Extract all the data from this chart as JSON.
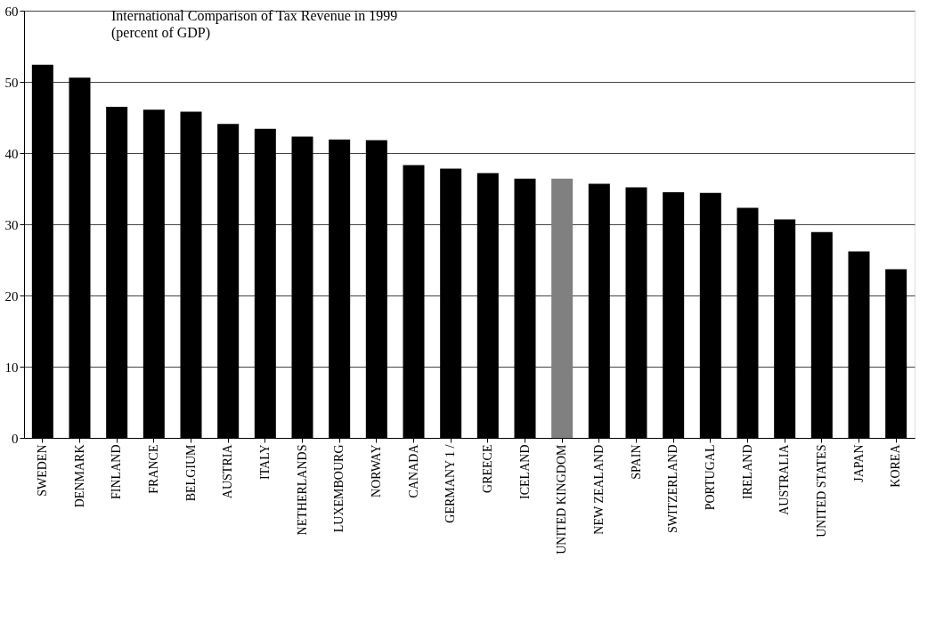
{
  "chart_data": {
    "type": "bar",
    "title": "International Comparison of Tax Revenue in 1999",
    "subtitle": "(percent of GDP)",
    "categories": [
      "SWEDEN",
      "DENMARK",
      "FINLAND",
      "FRANCE",
      "BELGIUM",
      "AUSTRIA",
      "ITALY",
      "NETHERLANDS",
      "LUXEMBOURG",
      "NORWAY",
      "CANADA",
      "GERMANY 1 /",
      "GREECE",
      "ICELAND",
      "UNITED KINGDOM",
      "NEW ZEALAND",
      "SPAIN",
      "SWITZERLAND",
      "PORTUGAL",
      "IRELAND",
      "AUSTRALIA",
      "UNITED STATES",
      "JAPAN",
      "KOREA"
    ],
    "values": [
      52.4,
      50.6,
      46.5,
      46.1,
      45.8,
      44.1,
      43.4,
      42.3,
      41.9,
      41.8,
      38.3,
      37.8,
      37.2,
      36.4,
      36.4,
      35.7,
      35.2,
      34.5,
      34.4,
      32.3,
      30.7,
      28.9,
      26.2,
      23.7
    ],
    "colors": [
      "#000000",
      "#000000",
      "#000000",
      "#000000",
      "#000000",
      "#000000",
      "#000000",
      "#000000",
      "#000000",
      "#000000",
      "#000000",
      "#000000",
      "#000000",
      "#000000",
      "#808080",
      "#000000",
      "#000000",
      "#000000",
      "#000000",
      "#000000",
      "#000000",
      "#000000",
      "#000000",
      "#000000"
    ],
    "ylim": [
      0,
      60
    ],
    "yticks": [
      0,
      10,
      20,
      30,
      40,
      50,
      60
    ],
    "grid": "y"
  }
}
